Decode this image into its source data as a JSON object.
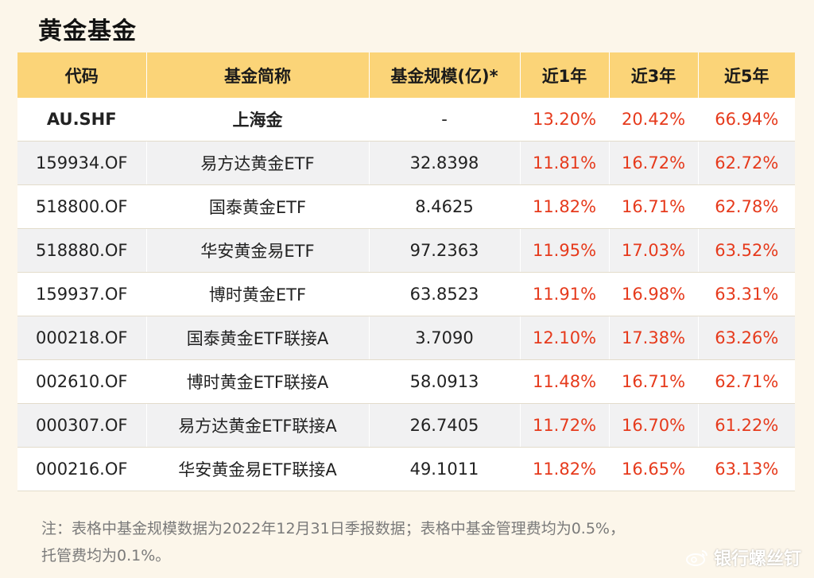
{
  "title": "黄金基金",
  "headers": [
    "代码",
    "基金简称",
    "基金规模(亿)*",
    "近1年",
    "近3年",
    "近5年"
  ],
  "rows": [
    {
      "code": "AU.SHF",
      "name": "上海金",
      "size": "-",
      "y1": "13.20%",
      "y3": "20.42%",
      "y5": "66.94%"
    },
    {
      "code": "159934.OF",
      "name": "易方达黄金ETF",
      "size": "32.8398",
      "y1": "11.81%",
      "y3": "16.72%",
      "y5": "62.72%"
    },
    {
      "code": "518800.OF",
      "name": "国泰黄金ETF",
      "size": "8.4625",
      "y1": "11.82%",
      "y3": "16.71%",
      "y5": "62.78%"
    },
    {
      "code": "518880.OF",
      "name": "华安黄金易ETF",
      "size": "97.2363",
      "y1": "11.95%",
      "y3": "17.03%",
      "y5": "63.52%"
    },
    {
      "code": "159937.OF",
      "name": "博时黄金ETF",
      "size": "63.8523",
      "y1": "11.91%",
      "y3": "16.98%",
      "y5": "63.31%"
    },
    {
      "code": "000218.OF",
      "name": "国泰黄金ETF联接A",
      "size": "3.7090",
      "y1": "12.10%",
      "y3": "17.38%",
      "y5": "63.26%"
    },
    {
      "code": "002610.OF",
      "name": "博时黄金ETF联接A",
      "size": "58.0913",
      "y1": "11.48%",
      "y3": "16.71%",
      "y5": "62.71%"
    },
    {
      "code": "000307.OF",
      "name": "易方达黄金ETF联接A",
      "size": "26.7405",
      "y1": "11.72%",
      "y3": "16.70%",
      "y5": "61.22%"
    },
    {
      "code": "000216.OF",
      "name": "华安黄金易ETF联接A",
      "size": "49.1011",
      "y1": "11.82%",
      "y3": "16.65%",
      "y5": "63.13%"
    }
  ],
  "note_line1": "注：表格中基金规模数据为2022年12月31日季报数据；表格中基金管理费均为0.5%，",
  "note_line2": "托管费均为0.1%。",
  "watermark": "银行螺丝钉",
  "colors": {
    "header_bg": "#fbd478",
    "pct_red": "#e63a1c",
    "alt_row": "#f1f1f2"
  }
}
